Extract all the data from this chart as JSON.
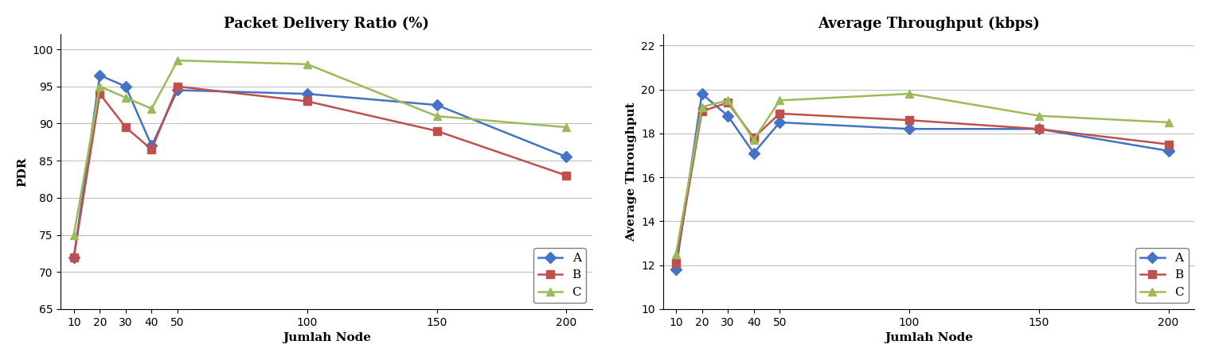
{
  "x_nodes": [
    10,
    20,
    30,
    40,
    50,
    100,
    150,
    200
  ],
  "chart1": {
    "title": "Packet Delivery Ratio (%)",
    "ylabel": "PDR",
    "xlabel": "Jumlah Node",
    "ylim": [
      65,
      102
    ],
    "yticks": [
      65,
      70,
      75,
      80,
      85,
      90,
      95,
      100
    ],
    "series": {
      "A": [
        72,
        96.5,
        95,
        87,
        94.5,
        94,
        92.5,
        85.5
      ],
      "B": [
        72,
        94,
        89.5,
        86.5,
        95,
        93,
        89,
        83
      ],
      "C": [
        75,
        95,
        93.5,
        92,
        98.5,
        98,
        91,
        89.5
      ]
    },
    "colors": {
      "A": "#4472C4",
      "B": "#C0504D",
      "C": "#9BBB59"
    },
    "markers": {
      "A": "D",
      "B": "s",
      "C": "^"
    }
  },
  "chart2": {
    "title": "Average Throughput (kbps)",
    "ylabel": "Average Throughput",
    "xlabel": "Jumlah Node",
    "ylim": [
      10,
      22.5
    ],
    "yticks": [
      10,
      12,
      14,
      16,
      18,
      20,
      22
    ],
    "series": {
      "A": [
        11.8,
        19.8,
        18.8,
        17.1,
        18.5,
        18.2,
        18.2,
        17.2
      ],
      "B": [
        12.1,
        19.0,
        19.4,
        17.8,
        18.9,
        18.6,
        18.2,
        17.5
      ],
      "C": [
        12.5,
        19.2,
        19.5,
        17.7,
        19.5,
        19.8,
        18.8,
        18.5
      ]
    },
    "colors": {
      "A": "#4472C4",
      "B": "#C0504D",
      "C": "#9BBB59"
    },
    "markers": {
      "A": "D",
      "B": "s",
      "C": "^"
    }
  },
  "title_fontsize": 13,
  "axis_label_fontsize": 11,
  "tick_fontsize": 10,
  "legend_fontsize": 11,
  "line_width": 1.8,
  "marker_size": 7,
  "background_color": "#FFFFFF",
  "grid_color": "#C0C0C0"
}
